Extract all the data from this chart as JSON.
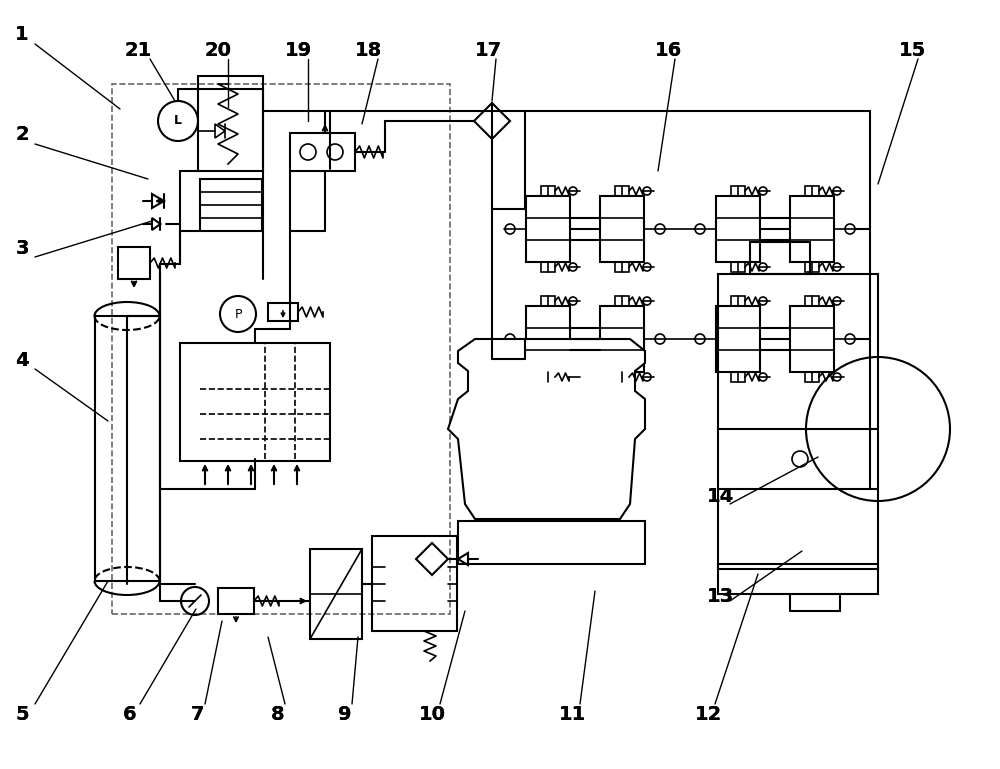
{
  "bg_color": "#ffffff",
  "line_color": "#000000",
  "line_width": 1.5,
  "fig_width": 10.0,
  "fig_height": 7.69,
  "dpi": 100
}
